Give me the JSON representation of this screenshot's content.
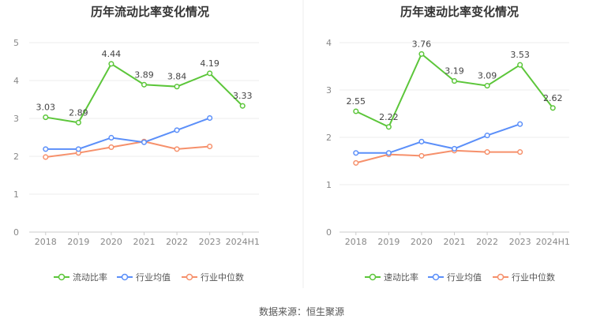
{
  "source": "数据来源：恒生聚源",
  "series_colors": {
    "main": "#5cc63a",
    "avg": "#5b8ff9",
    "median": "#f6906b"
  },
  "chart_data": [
    {
      "type": "line",
      "title": "历年流动比率变化情况",
      "categories": [
        "2018",
        "2019",
        "2020",
        "2021",
        "2022",
        "2023",
        "2024H1"
      ],
      "ylim": [
        0,
        5
      ],
      "yticks": [
        "0",
        "1",
        "2",
        "3",
        "4",
        "5"
      ],
      "grid": true,
      "legend_position": "bottom",
      "series": [
        {
          "name": "流动比率",
          "values": [
            3.03,
            2.89,
            4.44,
            3.89,
            3.84,
            4.19,
            3.33
          ],
          "labels": [
            "3.03",
            "2.89",
            "4.44",
            "3.89",
            "3.84",
            "4.19",
            "3.33"
          ]
        },
        {
          "name": "行业均值",
          "values": [
            2.19,
            2.19,
            2.49,
            2.37,
            2.69,
            3.01,
            null
          ]
        },
        {
          "name": "行业中位数",
          "values": [
            1.98,
            2.09,
            2.24,
            2.39,
            2.19,
            2.26,
            null
          ]
        }
      ]
    },
    {
      "type": "line",
      "title": "历年速动比率变化情况",
      "categories": [
        "2018",
        "2019",
        "2020",
        "2021",
        "2022",
        "2023",
        "2024H1"
      ],
      "ylim": [
        0,
        4
      ],
      "yticks": [
        "0",
        "1",
        "2",
        "3",
        "4"
      ],
      "grid": true,
      "legend_position": "bottom",
      "series": [
        {
          "name": "速动比率",
          "values": [
            2.55,
            2.22,
            3.76,
            3.19,
            3.09,
            3.53,
            2.62
          ],
          "labels": [
            "2.55",
            "2.22",
            "3.76",
            "3.19",
            "3.09",
            "3.53",
            "2.62"
          ]
        },
        {
          "name": "行业均值",
          "values": [
            1.67,
            1.67,
            1.91,
            1.76,
            2.04,
            2.28,
            null
          ]
        },
        {
          "name": "行业中位数",
          "values": [
            1.46,
            1.64,
            1.61,
            1.72,
            1.69,
            1.69,
            null
          ]
        }
      ]
    }
  ]
}
